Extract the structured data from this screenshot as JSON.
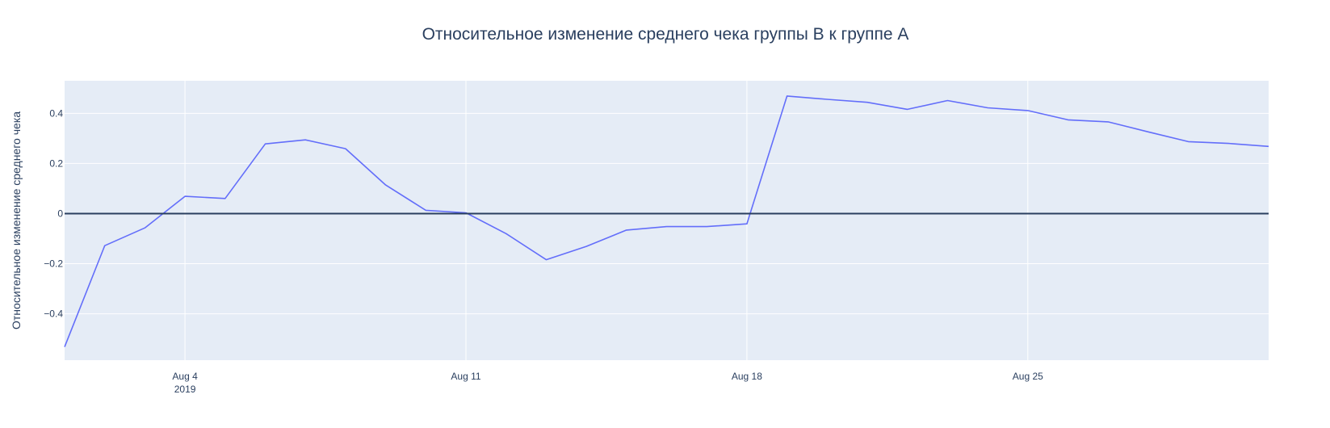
{
  "chart_data": {
    "type": "line",
    "title": "Относительное изменение среднего чека группы B к группе A",
    "xlabel": "",
    "ylabel": "Относительное изменение среднего чека",
    "x": [
      "2019-08-01",
      "2019-08-02",
      "2019-08-03",
      "2019-08-04",
      "2019-08-05",
      "2019-08-06",
      "2019-08-07",
      "2019-08-08",
      "2019-08-09",
      "2019-08-10",
      "2019-08-11",
      "2019-08-12",
      "2019-08-13",
      "2019-08-14",
      "2019-08-15",
      "2019-08-16",
      "2019-08-17",
      "2019-08-18",
      "2019-08-19",
      "2019-08-20",
      "2019-08-21",
      "2019-08-22",
      "2019-08-23",
      "2019-08-24",
      "2019-08-25",
      "2019-08-26",
      "2019-08-27",
      "2019-08-28",
      "2019-08-29",
      "2019-08-30",
      "2019-08-31"
    ],
    "series": [
      {
        "values": [
          -0.532,
          -0.128,
          -0.057,
          0.069,
          0.06,
          0.278,
          0.294,
          0.259,
          0.114,
          0.013,
          0.003,
          -0.08,
          -0.184,
          -0.131,
          -0.066,
          -0.052,
          -0.052,
          -0.041,
          0.469,
          0.456,
          0.444,
          0.416,
          0.451,
          0.422,
          0.411,
          0.374,
          0.366,
          0.326,
          0.287,
          0.28,
          0.268
        ]
      }
    ],
    "x_ticks": [
      {
        "date": "2019-08-04",
        "label": "Aug 4",
        "sublabel": "2019"
      },
      {
        "date": "2019-08-11",
        "label": "Aug 11",
        "sublabel": ""
      },
      {
        "date": "2019-08-18",
        "label": "Aug 18",
        "sublabel": ""
      },
      {
        "date": "2019-08-25",
        "label": "Aug 25",
        "sublabel": ""
      }
    ],
    "y_ticks": [
      {
        "value": 0.4,
        "label": "0.4"
      },
      {
        "value": 0.2,
        "label": "0.2"
      },
      {
        "value": 0,
        "label": "0"
      },
      {
        "value": -0.2,
        "label": "−0.2"
      },
      {
        "value": -0.4,
        "label": "−0.4"
      }
    ],
    "xlim": [
      "2019-08-01",
      "2019-08-31"
    ],
    "ylim": [
      -0.585,
      0.53
    ],
    "reference_line": 0,
    "grid": true,
    "colors": {
      "plot_background": "#e5ecf6",
      "grid": "#ffffff",
      "line": "#636efa",
      "zero_line": "#2a3f5f",
      "text": "#2a3f5f",
      "tick_text": "#2a3f5f"
    }
  }
}
